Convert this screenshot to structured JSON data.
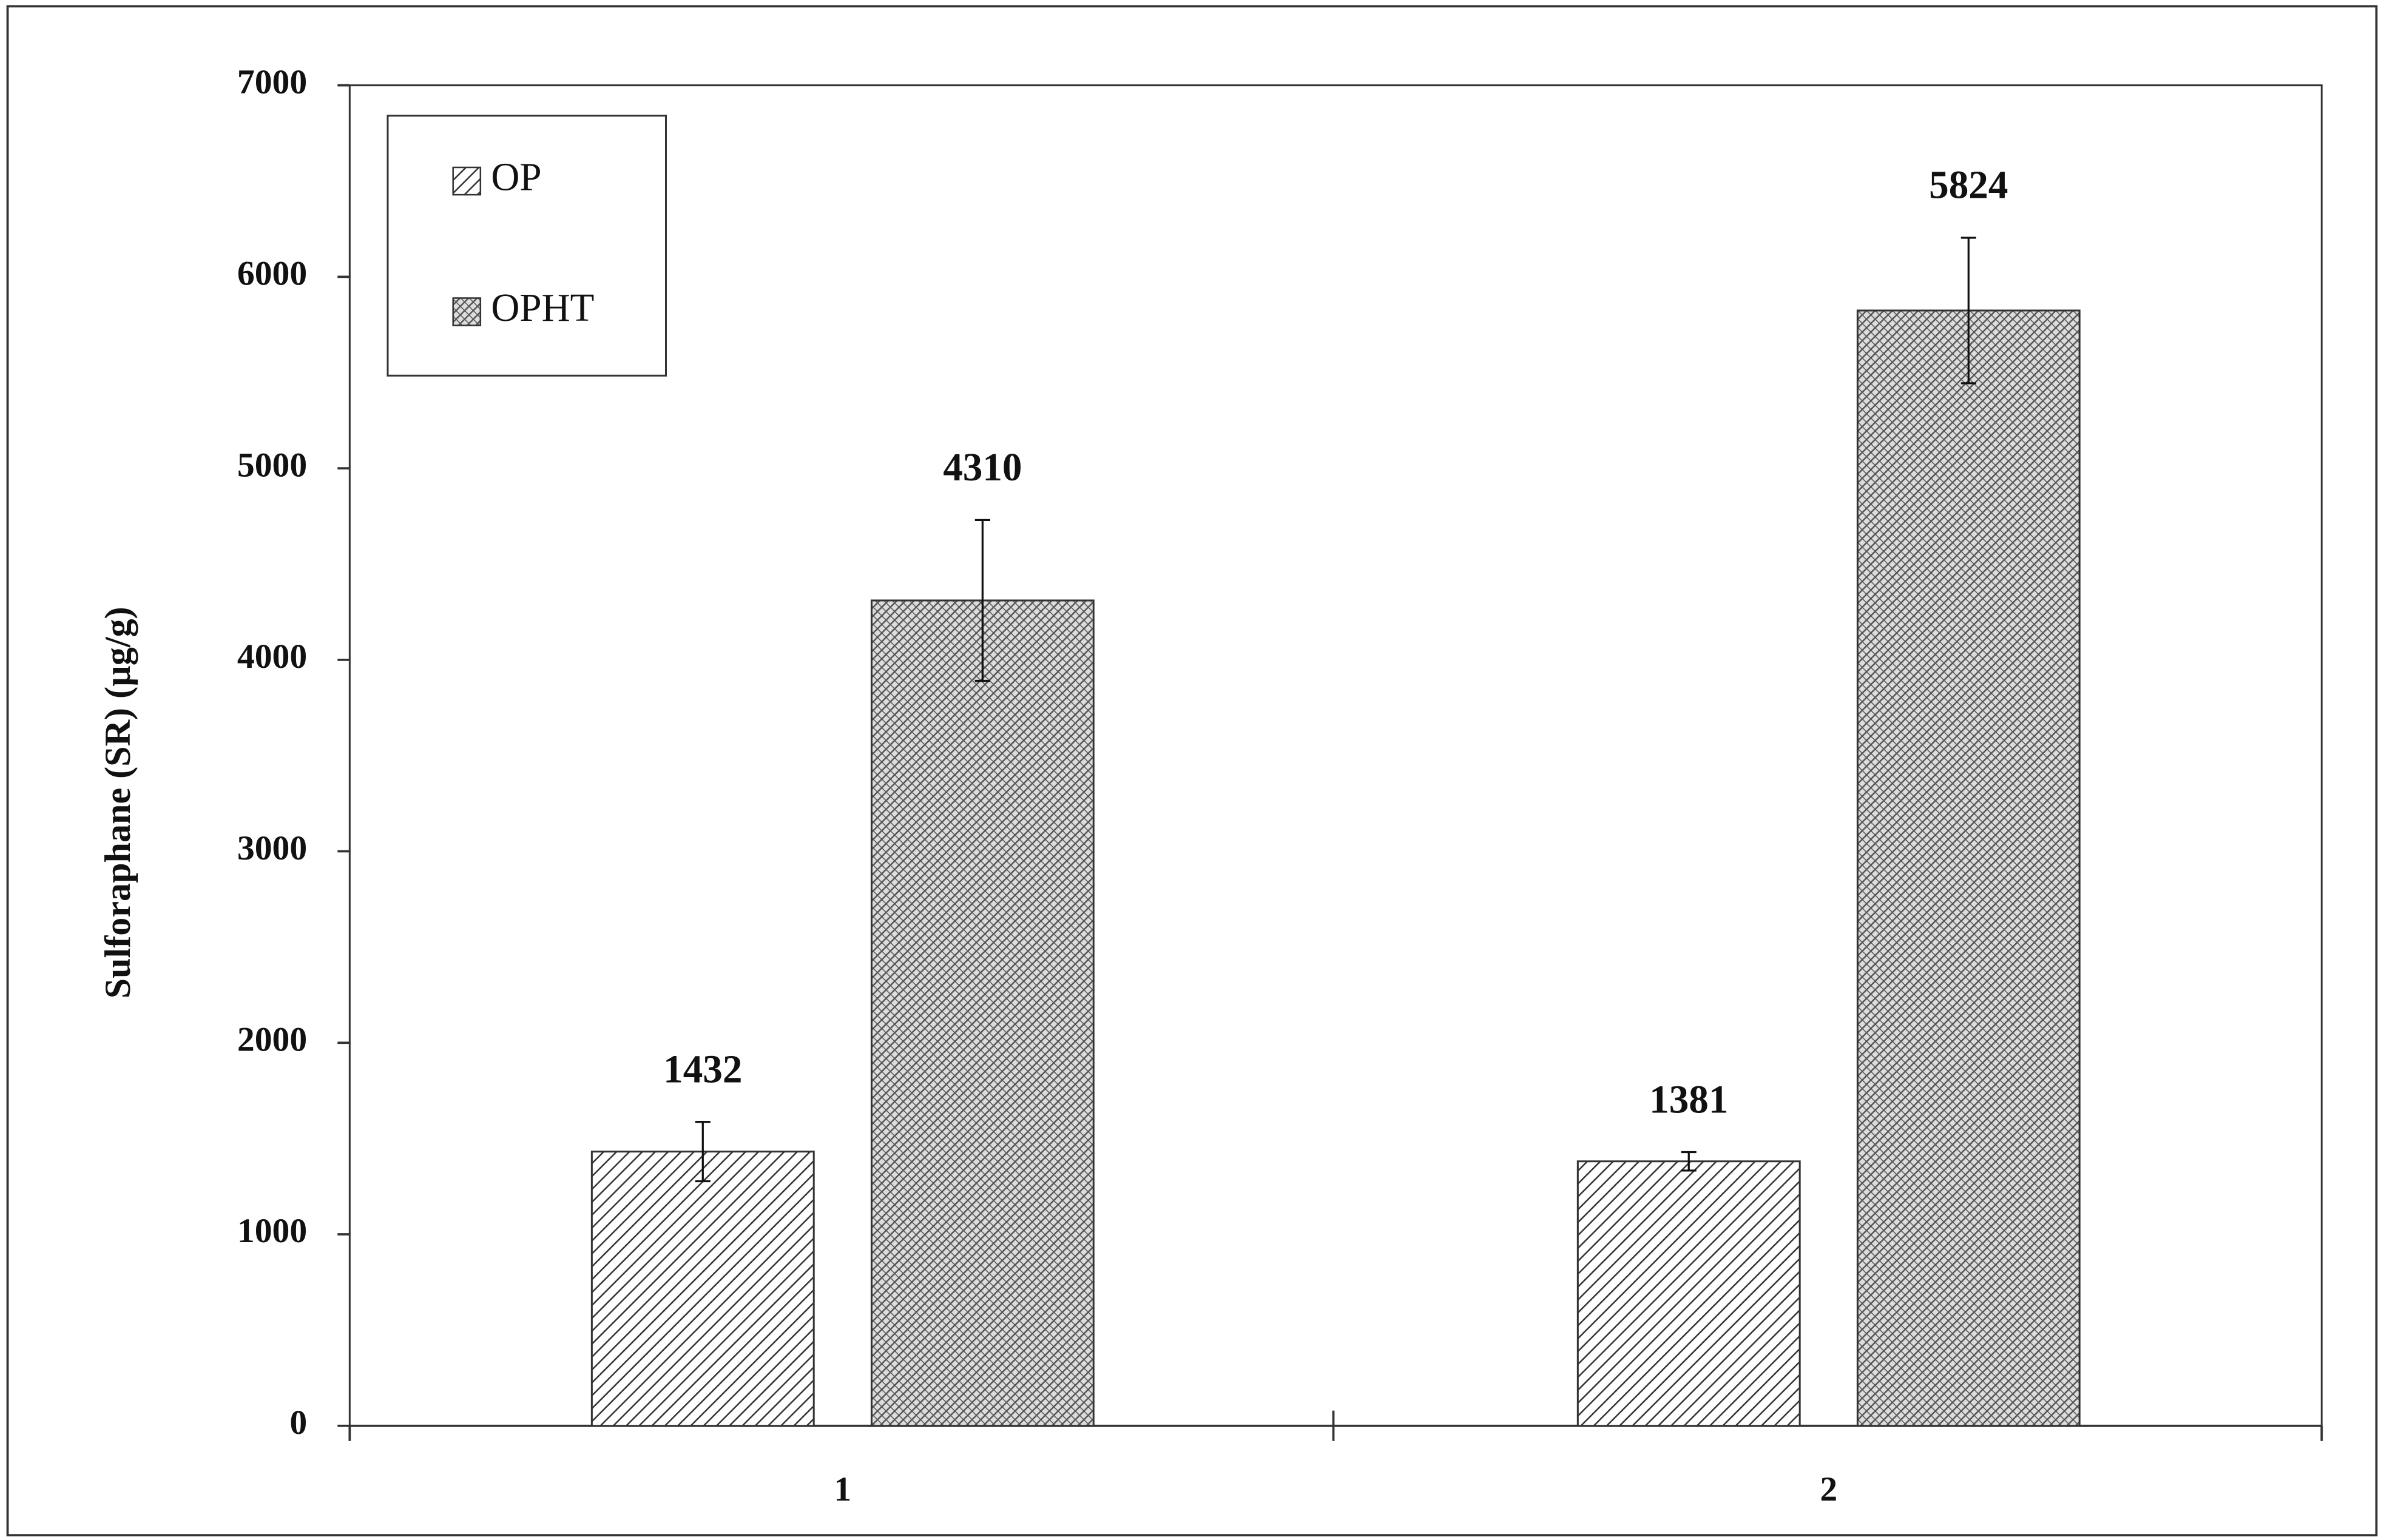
{
  "chart_data": {
    "type": "bar",
    "y_label": "Sulforaphane (SR) (µg/g)",
    "categories": [
      "1",
      "2"
    ],
    "series": [
      {
        "name": "OP",
        "color": "#333333",
        "values": [
          1432,
          1381
        ],
        "errors": [
          155,
          48
        ]
      },
      {
        "name": "OPHT",
        "color": "#555555",
        "values": [
          4310,
          5824
        ],
        "errors": [
          420,
          380
        ]
      }
    ],
    "ylim": [
      0,
      7000
    ],
    "yticks": [
      0,
      1000,
      2000,
      3000,
      4000,
      5000,
      6000,
      7000
    ],
    "grid": false,
    "legend": "upper left",
    "error_bars": true
  }
}
